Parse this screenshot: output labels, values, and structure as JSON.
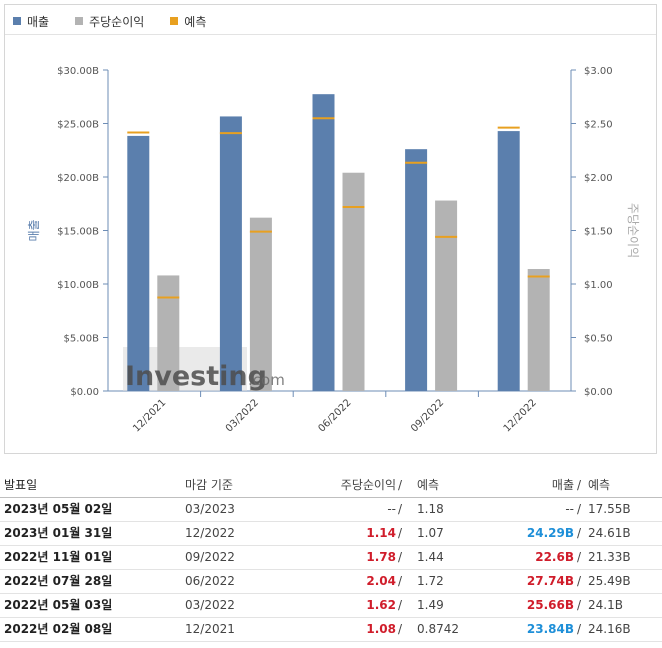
{
  "legend": {
    "revenue": {
      "label": "매출",
      "color": "#5b7fad"
    },
    "eps": {
      "label": "주당순이익",
      "color": "#b3b3b3"
    },
    "forecast": {
      "label": "예측",
      "color": "#e8a020"
    }
  },
  "watermark": {
    "brand": "Investing",
    "suffix": ".com"
  },
  "chart_data": {
    "type": "bar",
    "categories": [
      "12/2021",
      "03/2022",
      "06/2022",
      "09/2022",
      "12/2022"
    ],
    "series": [
      {
        "name": "매출",
        "axis": "left",
        "unit": "B",
        "values": [
          23.84,
          25.66,
          27.74,
          22.6,
          24.29
        ],
        "forecast": [
          24.16,
          24.1,
          25.49,
          21.33,
          24.61
        ],
        "color": "#5b7fad"
      },
      {
        "name": "주당순이익",
        "axis": "right",
        "values": [
          1.08,
          1.62,
          2.04,
          1.78,
          1.14
        ],
        "forecast": [
          0.8742,
          1.49,
          1.72,
          1.44,
          1.07
        ],
        "color": "#b3b3b3"
      }
    ],
    "forecast_color": "#e8a020",
    "left_axis": {
      "label": "매출",
      "ticks": [
        "$0.00",
        "$5.00B",
        "$10.00B",
        "$15.00B",
        "$20.00B",
        "$25.00B",
        "$30.00B"
      ],
      "range": [
        0,
        30
      ]
    },
    "right_axis": {
      "label": "주당순이익",
      "ticks": [
        "$0.00",
        "$0.50",
        "$1.00",
        "$1.50",
        "$2.00",
        "$2.50",
        "$3.00"
      ],
      "range": [
        0,
        3
      ]
    },
    "grid": false,
    "legend": "top-left"
  },
  "table": {
    "headers": {
      "date": "발표일",
      "period": "마감 기준",
      "eps": "주당순이익",
      "forecast": "예측",
      "revenue": "매출",
      "slash": "/"
    },
    "rows": [
      {
        "date": "2023년 05월 02일",
        "period": "03/2023",
        "eps": "--",
        "eps_class": "none",
        "eps_forecast": "1.18",
        "revenue": "--",
        "revenue_class": "none",
        "revenue_forecast": "17.55B"
      },
      {
        "date": "2023년 01월 31일",
        "period": "12/2022",
        "eps": "1.14",
        "eps_class": "up",
        "eps_forecast": "1.07",
        "revenue": "24.29B",
        "revenue_class": "down",
        "revenue_forecast": "24.61B"
      },
      {
        "date": "2022년 11월 01일",
        "period": "09/2022",
        "eps": "1.78",
        "eps_class": "up",
        "eps_forecast": "1.44",
        "revenue": "22.6B",
        "revenue_class": "up",
        "revenue_forecast": "21.33B"
      },
      {
        "date": "2022년 07월 28일",
        "period": "06/2022",
        "eps": "2.04",
        "eps_class": "up",
        "eps_forecast": "1.72",
        "revenue": "27.74B",
        "revenue_class": "up",
        "revenue_forecast": "25.49B"
      },
      {
        "date": "2022년 05월 03일",
        "period": "03/2022",
        "eps": "1.62",
        "eps_class": "up",
        "eps_forecast": "1.49",
        "revenue": "25.66B",
        "revenue_class": "up",
        "revenue_forecast": "24.1B"
      },
      {
        "date": "2022년 02월 08일",
        "period": "12/2021",
        "eps": "1.08",
        "eps_class": "up",
        "eps_forecast": "0.8742",
        "revenue": "23.84B",
        "revenue_class": "down",
        "revenue_forecast": "24.16B"
      }
    ]
  }
}
